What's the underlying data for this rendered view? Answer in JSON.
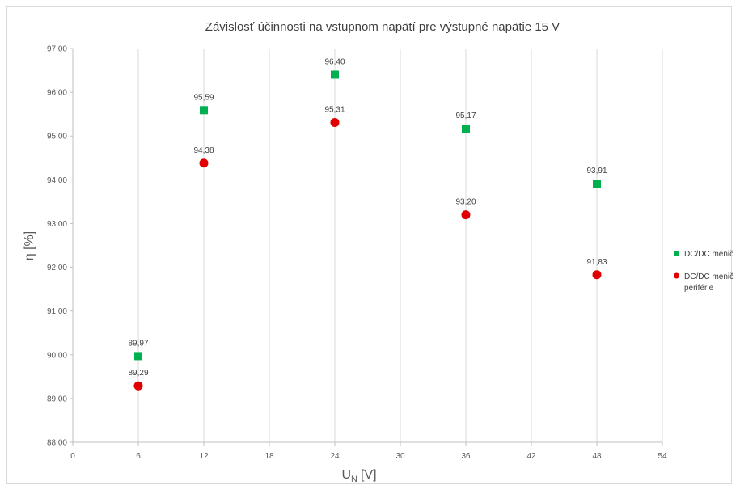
{
  "chart_data": {
    "type": "scatter",
    "title": "Závislosť účinnosti na vstupnom napätí pre výstupné napätie 15 V",
    "xlabel_main": "U",
    "xlabel_sub": "N",
    "xlabel_unit": "[V]",
    "ylabel": "η [%]",
    "xlim": [
      0,
      54
    ],
    "ylim": [
      88,
      97
    ],
    "x_ticks": [
      "0",
      "6",
      "12",
      "18",
      "24",
      "30",
      "36",
      "42",
      "48",
      "54"
    ],
    "y_ticks": [
      "88,00",
      "89,00",
      "90,00",
      "91,00",
      "92,00",
      "93,00",
      "94,00",
      "95,00",
      "96,00",
      "97,00"
    ],
    "grid": "vertical",
    "legend_position": "right",
    "series": [
      {
        "name": "DC/DC menič",
        "marker": "square",
        "color": "#00b050",
        "x": [
          6,
          12,
          24,
          36,
          48
        ],
        "y": [
          89.97,
          95.59,
          96.4,
          95.17,
          93.91
        ],
        "labels": [
          "89,97",
          "95,59",
          "96,40",
          "95,17",
          "93,91"
        ]
      },
      {
        "name_lines": [
          "DC/DC menič a",
          "periférie"
        ],
        "marker": "circle",
        "color": "#e00000",
        "x": [
          6,
          12,
          24,
          36,
          48
        ],
        "y": [
          89.29,
          94.38,
          95.31,
          93.2,
          91.83
        ],
        "labels": [
          "89,29",
          "94,38",
          "95,31",
          "93,20",
          "91,83"
        ]
      }
    ]
  }
}
